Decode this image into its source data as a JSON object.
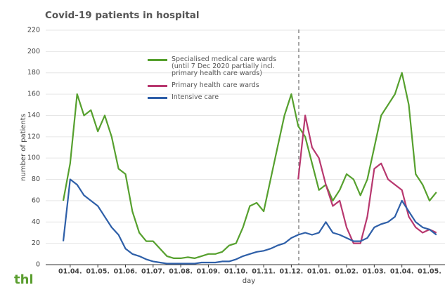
{
  "chart_data": {
    "type": "line",
    "title": "Covid-19 patients in hospital",
    "ylabel": "number of patients",
    "xlabel": "day",
    "logo": "thl",
    "categories": [
      null,
      "01.04.",
      null,
      null,
      null,
      "01.05.",
      null,
      null,
      null,
      "01.06.",
      null,
      null,
      null,
      "01.07.",
      null,
      null,
      null,
      "01.08.",
      null,
      null,
      null,
      "01.09.",
      null,
      null,
      null,
      "01.10.",
      null,
      null,
      null,
      "01.11.",
      null,
      null,
      null,
      "01.12.",
      null,
      null,
      null,
      "01.01.",
      null,
      null,
      null,
      "01.02.",
      null,
      null,
      null,
      "01.03.",
      null,
      null,
      null,
      "01.04.",
      null,
      null,
      null,
      "01.05.",
      null
    ],
    "series": [
      {
        "name": "Specialised medical care wards\n (until 7 Dec 2020 partially incl.\n primary health care wards)",
        "color": "#56a02e",
        "values": [
          60,
          95,
          160,
          140,
          145,
          125,
          140,
          120,
          90,
          85,
          50,
          30,
          22,
          22,
          15,
          8,
          6,
          6,
          7,
          6,
          8,
          10,
          10,
          12,
          18,
          20,
          35,
          55,
          58,
          50,
          80,
          110,
          140,
          160,
          130,
          120,
          95,
          70,
          75,
          60,
          70,
          85,
          80,
          65,
          80,
          110,
          140,
          150,
          160,
          180,
          150,
          85,
          75,
          60,
          68
        ]
      },
      {
        "name": "Primary health care wards",
        "color": "#b8386f",
        "values": [
          null,
          null,
          null,
          null,
          null,
          null,
          null,
          null,
          null,
          null,
          null,
          null,
          null,
          null,
          null,
          null,
          null,
          null,
          null,
          null,
          null,
          null,
          null,
          null,
          null,
          null,
          null,
          null,
          null,
          null,
          null,
          null,
          null,
          null,
          80,
          140,
          110,
          100,
          75,
          55,
          60,
          35,
          20,
          20,
          45,
          90,
          95,
          80,
          75,
          70,
          45,
          35,
          30,
          33,
          30
        ]
      },
      {
        "name": "Intensive care",
        "color": "#2e5fa8",
        "values": [
          22,
          80,
          75,
          65,
          60,
          55,
          45,
          35,
          28,
          15,
          10,
          8,
          5,
          3,
          2,
          1,
          1,
          1,
          1,
          1,
          2,
          2,
          2,
          3,
          3,
          5,
          8,
          10,
          12,
          13,
          15,
          18,
          20,
          25,
          28,
          30,
          28,
          30,
          40,
          30,
          28,
          25,
          22,
          22,
          25,
          35,
          38,
          40,
          45,
          60,
          50,
          40,
          35,
          33,
          28
        ]
      }
    ],
    "ylim": [
      0,
      220
    ],
    "yticks": [
      0,
      20,
      40,
      60,
      80,
      100,
      120,
      140,
      160,
      180,
      200,
      220
    ],
    "grid": true
  }
}
